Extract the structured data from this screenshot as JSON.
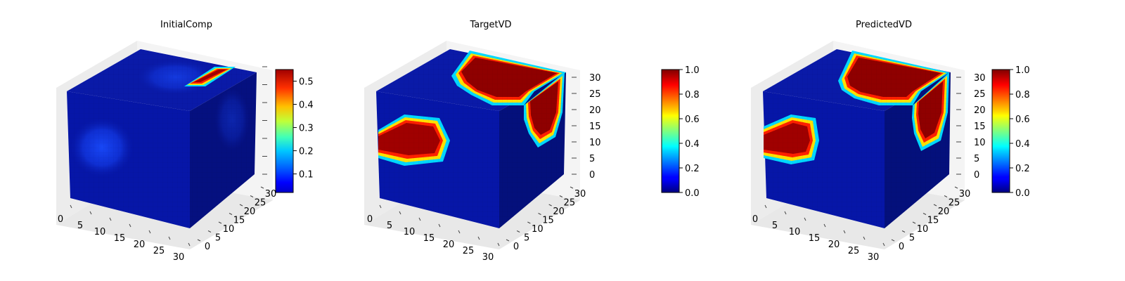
{
  "figure": {
    "panels": [
      "InitialComp",
      "TargetVD",
      "PredictedVD"
    ]
  },
  "chart_data": [
    {
      "type": "3d-voxel",
      "title": "InitialComp",
      "x_ticks": [
        "0",
        "5",
        "10",
        "15",
        "20",
        "25",
        "30"
      ],
      "y_ticks": [
        "0",
        "5",
        "10",
        "15",
        "20",
        "25",
        "30"
      ],
      "z_ticks": [],
      "colorbar": {
        "colormap": "jet",
        "min": 0.02,
        "max": 0.55,
        "ticks": [
          "0.1",
          "0.2",
          "0.3",
          "0.4",
          "0.5"
        ],
        "tick_values": [
          0.1,
          0.2,
          0.3,
          0.4,
          0.5
        ]
      }
    },
    {
      "type": "3d-voxel",
      "title": "TargetVD",
      "x_ticks": [
        "0",
        "5",
        "10",
        "15",
        "20",
        "25",
        "30"
      ],
      "y_ticks": [
        "0",
        "5",
        "10",
        "15",
        "20",
        "25",
        "30"
      ],
      "z_ticks": [
        "0",
        "5",
        "10",
        "15",
        "20",
        "25",
        "30"
      ],
      "colorbar": {
        "colormap": "jet",
        "min": 0.0,
        "max": 1.0,
        "ticks": [
          "0.0",
          "0.2",
          "0.4",
          "0.6",
          "0.8",
          "1.0"
        ],
        "tick_values": [
          0.0,
          0.2,
          0.4,
          0.6,
          0.8,
          1.0
        ]
      }
    },
    {
      "type": "3d-voxel",
      "title": "PredictedVD",
      "x_ticks": [
        "0",
        "5",
        "10",
        "15",
        "20",
        "25",
        "30"
      ],
      "y_ticks": [
        "0",
        "5",
        "10",
        "15",
        "20",
        "25",
        "30"
      ],
      "z_ticks": [
        "0",
        "5",
        "10",
        "15",
        "20",
        "25",
        "30"
      ],
      "colorbar": {
        "colormap": "jet",
        "min": 0.0,
        "max": 1.0,
        "ticks": [
          "0.0",
          "0.2",
          "0.4",
          "0.6",
          "0.8",
          "1.0"
        ],
        "tick_values": [
          0.0,
          0.2,
          0.4,
          0.6,
          0.8,
          1.0
        ]
      }
    }
  ]
}
